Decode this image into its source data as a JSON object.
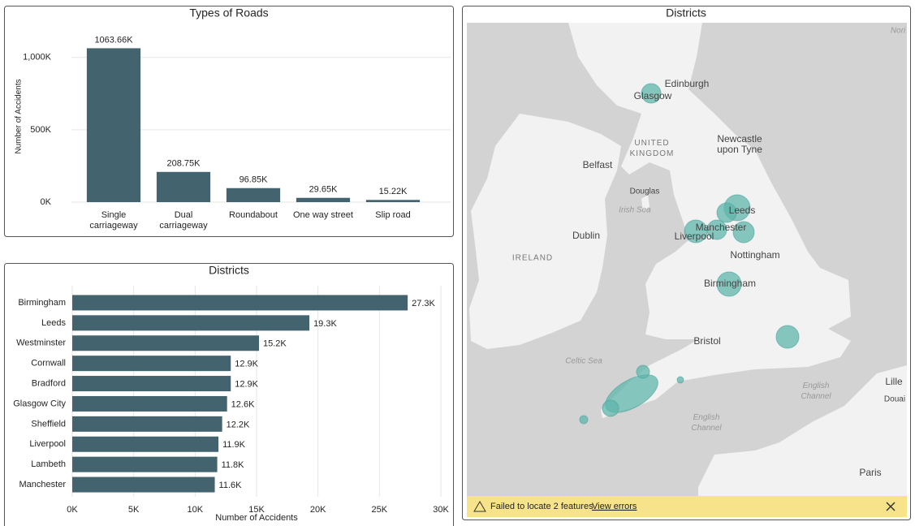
{
  "chart_data": [
    {
      "type": "bar",
      "title": "Types of Roads",
      "y_label": "Number of Accidents",
      "categories": [
        "Single carriageway",
        "Dual carriageway",
        "Roundabout",
        "One way street",
        "Slip road"
      ],
      "values": [
        1063.66,
        208.75,
        96.85,
        29.65,
        15.22
      ],
      "value_labels": [
        "1063.66K",
        "208.75K",
        "96.85K",
        "29.65K",
        "15.22K"
      ],
      "color": "#43636e",
      "ylim": [
        0,
        1240
      ],
      "yticks": [
        {
          "value": 0,
          "label": "0K"
        },
        {
          "value": 500,
          "label": "500K"
        },
        {
          "value": 1000,
          "label": "1,000K"
        }
      ],
      "grid": true
    },
    {
      "type": "barh",
      "title": "Districts",
      "x_label": "Number of Accidents",
      "categories": [
        "Birmingham",
        "Leeds",
        "Westminster",
        "Cornwall",
        "Bradford",
        "Glasgow City",
        "Sheffield",
        "Liverpool",
        "Lambeth",
        "Manchester"
      ],
      "values": [
        27.3,
        19.3,
        15.2,
        12.9,
        12.9,
        12.6,
        12.2,
        11.9,
        11.8,
        11.6
      ],
      "value_labels": [
        "27.3K",
        "19.3K",
        "15.2K",
        "12.9K",
        "12.9K",
        "12.6K",
        "12.2K",
        "11.9K",
        "11.8K",
        "11.6K"
      ],
      "color": "#43636e",
      "xlim": [
        0,
        30
      ],
      "xticks": [
        {
          "value": 0,
          "label": "0K"
        },
        {
          "value": 5,
          "label": "5K"
        },
        {
          "value": 10,
          "label": "10K"
        },
        {
          "value": 15,
          "label": "15K"
        },
        {
          "value": 20,
          "label": "20K"
        },
        {
          "value": 25,
          "label": "25K"
        },
        {
          "value": 30,
          "label": "30K"
        }
      ],
      "grid": true
    }
  ],
  "map": {
    "title": "Districts",
    "places": [
      "Edinburgh",
      "Glasgow",
      "UNITED KINGDOM",
      "Newcastle upon Tyne",
      "Belfast",
      "Douglas",
      "Irish Sea",
      "Dublin",
      "IRELAND",
      "Leeds",
      "Manchester",
      "Liverpool",
      "Nottingham",
      "Birmingham",
      "Bristol",
      "Celtic Sea",
      "English Channel",
      "English Channel",
      "Lille",
      "Douai",
      "Paris",
      "Nori"
    ],
    "notice": "Failed to locate 2 features",
    "link": "View errors"
  }
}
